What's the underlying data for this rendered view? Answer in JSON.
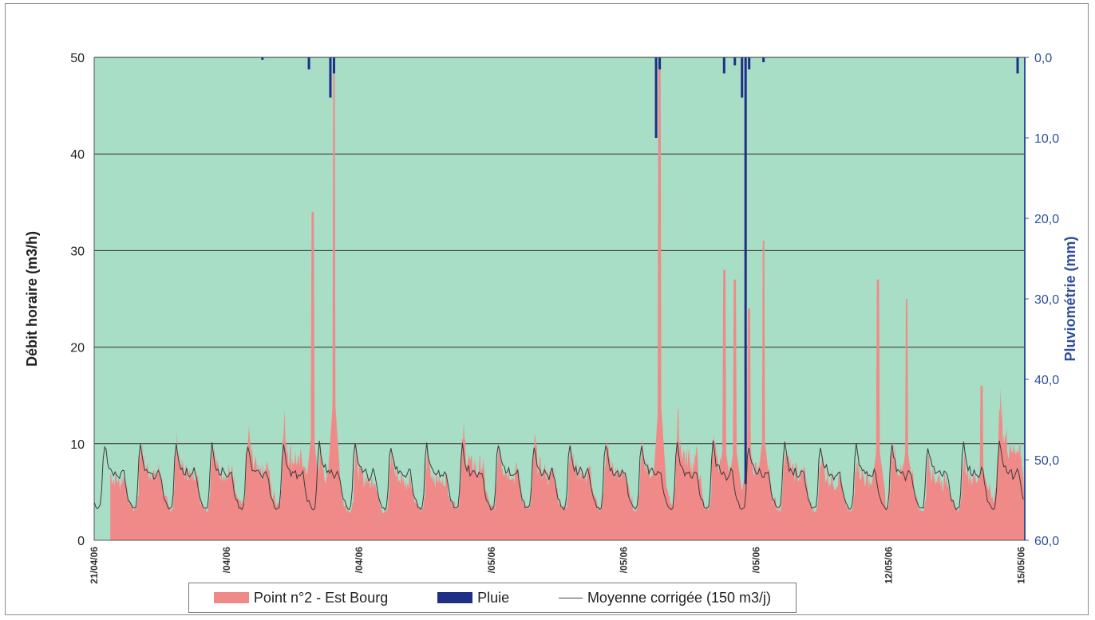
{
  "colors": {
    "plot_bg": "#a8ddc6",
    "flow_fill": "#f08a88",
    "rain_bar": "#1f2f86",
    "avg_line": "#3a3a3a",
    "grid": "#333333",
    "right_axis": "#2f4f9a"
  },
  "chart_data": {
    "type": "area",
    "title": "",
    "ylabel": "Débit horaire (m3/h)",
    "y2label": "Pluviométrie (mm)",
    "ylim": [
      0,
      50
    ],
    "yticks": [
      "0",
      "10",
      "20",
      "30",
      "40",
      "50"
    ],
    "y2lim_inverted": [
      0,
      60
    ],
    "y2ticks": [
      "0,0",
      "10,0",
      "20,0",
      "30,0",
      "40,0",
      "50,0",
      "60,0"
    ],
    "x_days": 26,
    "xticks": [
      {
        "day": 0,
        "label": "21/04/06"
      },
      {
        "day": 3.7,
        "label": "/04/06"
      },
      {
        "day": 7.4,
        "label": "/04/06"
      },
      {
        "day": 11.1,
        "label": "/05/06"
      },
      {
        "day": 14.8,
        "label": "/05/06"
      },
      {
        "day": 18.5,
        "label": "/05/06"
      },
      {
        "day": 22.2,
        "label": "12/05/06"
      },
      {
        "day": 25.9,
        "label": "15/05/06"
      }
    ],
    "grid": true,
    "legend_position": "bottom",
    "series": [
      {
        "name": "Point n°2 - Est Bourg",
        "type": "area",
        "axis": "left",
        "base_daily_peaks": [
          9,
          10,
          10,
          10,
          11,
          12,
          9,
          9,
          9,
          9,
          11,
          10,
          10,
          10,
          10,
          10,
          12,
          10,
          10,
          10,
          9,
          9,
          10,
          9,
          9,
          14
        ],
        "spikes": [
          {
            "day": 6.1,
            "value": 34
          },
          {
            "day": 6.7,
            "value": 50
          },
          {
            "day": 15.8,
            "value": 50
          },
          {
            "day": 17.6,
            "value": 28
          },
          {
            "day": 17.9,
            "value": 27
          },
          {
            "day": 18.3,
            "value": 24
          },
          {
            "day": 18.7,
            "value": 31
          },
          {
            "day": 21.9,
            "value": 27
          },
          {
            "day": 22.7,
            "value": 25
          },
          {
            "day": 24.8,
            "value": 16
          }
        ]
      },
      {
        "name": "Pluie",
        "type": "bar",
        "axis": "right_inverted",
        "bars": [
          {
            "day": 4.7,
            "value": 0.3
          },
          {
            "day": 6.0,
            "value": 1.5
          },
          {
            "day": 6.6,
            "value": 5.0
          },
          {
            "day": 6.7,
            "value": 2.0
          },
          {
            "day": 15.7,
            "value": 10.0
          },
          {
            "day": 15.8,
            "value": 1.5
          },
          {
            "day": 17.6,
            "value": 2.0
          },
          {
            "day": 17.9,
            "value": 1.0
          },
          {
            "day": 18.1,
            "value": 5.0
          },
          {
            "day": 18.2,
            "value": 53.0
          },
          {
            "day": 18.3,
            "value": 1.5
          },
          {
            "day": 18.7,
            "value": 0.6
          },
          {
            "day": 25.8,
            "value": 2.0
          }
        ]
      },
      {
        "name": "Moyenne corrigée (150 m3/j)",
        "type": "line",
        "axis": "left",
        "daily_profile": [
          4,
          3.5,
          3.3,
          3.3,
          3.5,
          5,
          8.5,
          10,
          9,
          8,
          7.5,
          7.5,
          7,
          7,
          7.2,
          7,
          6.5,
          6.5,
          7,
          7.2,
          7,
          6,
          5,
          4.2
        ]
      }
    ]
  }
}
